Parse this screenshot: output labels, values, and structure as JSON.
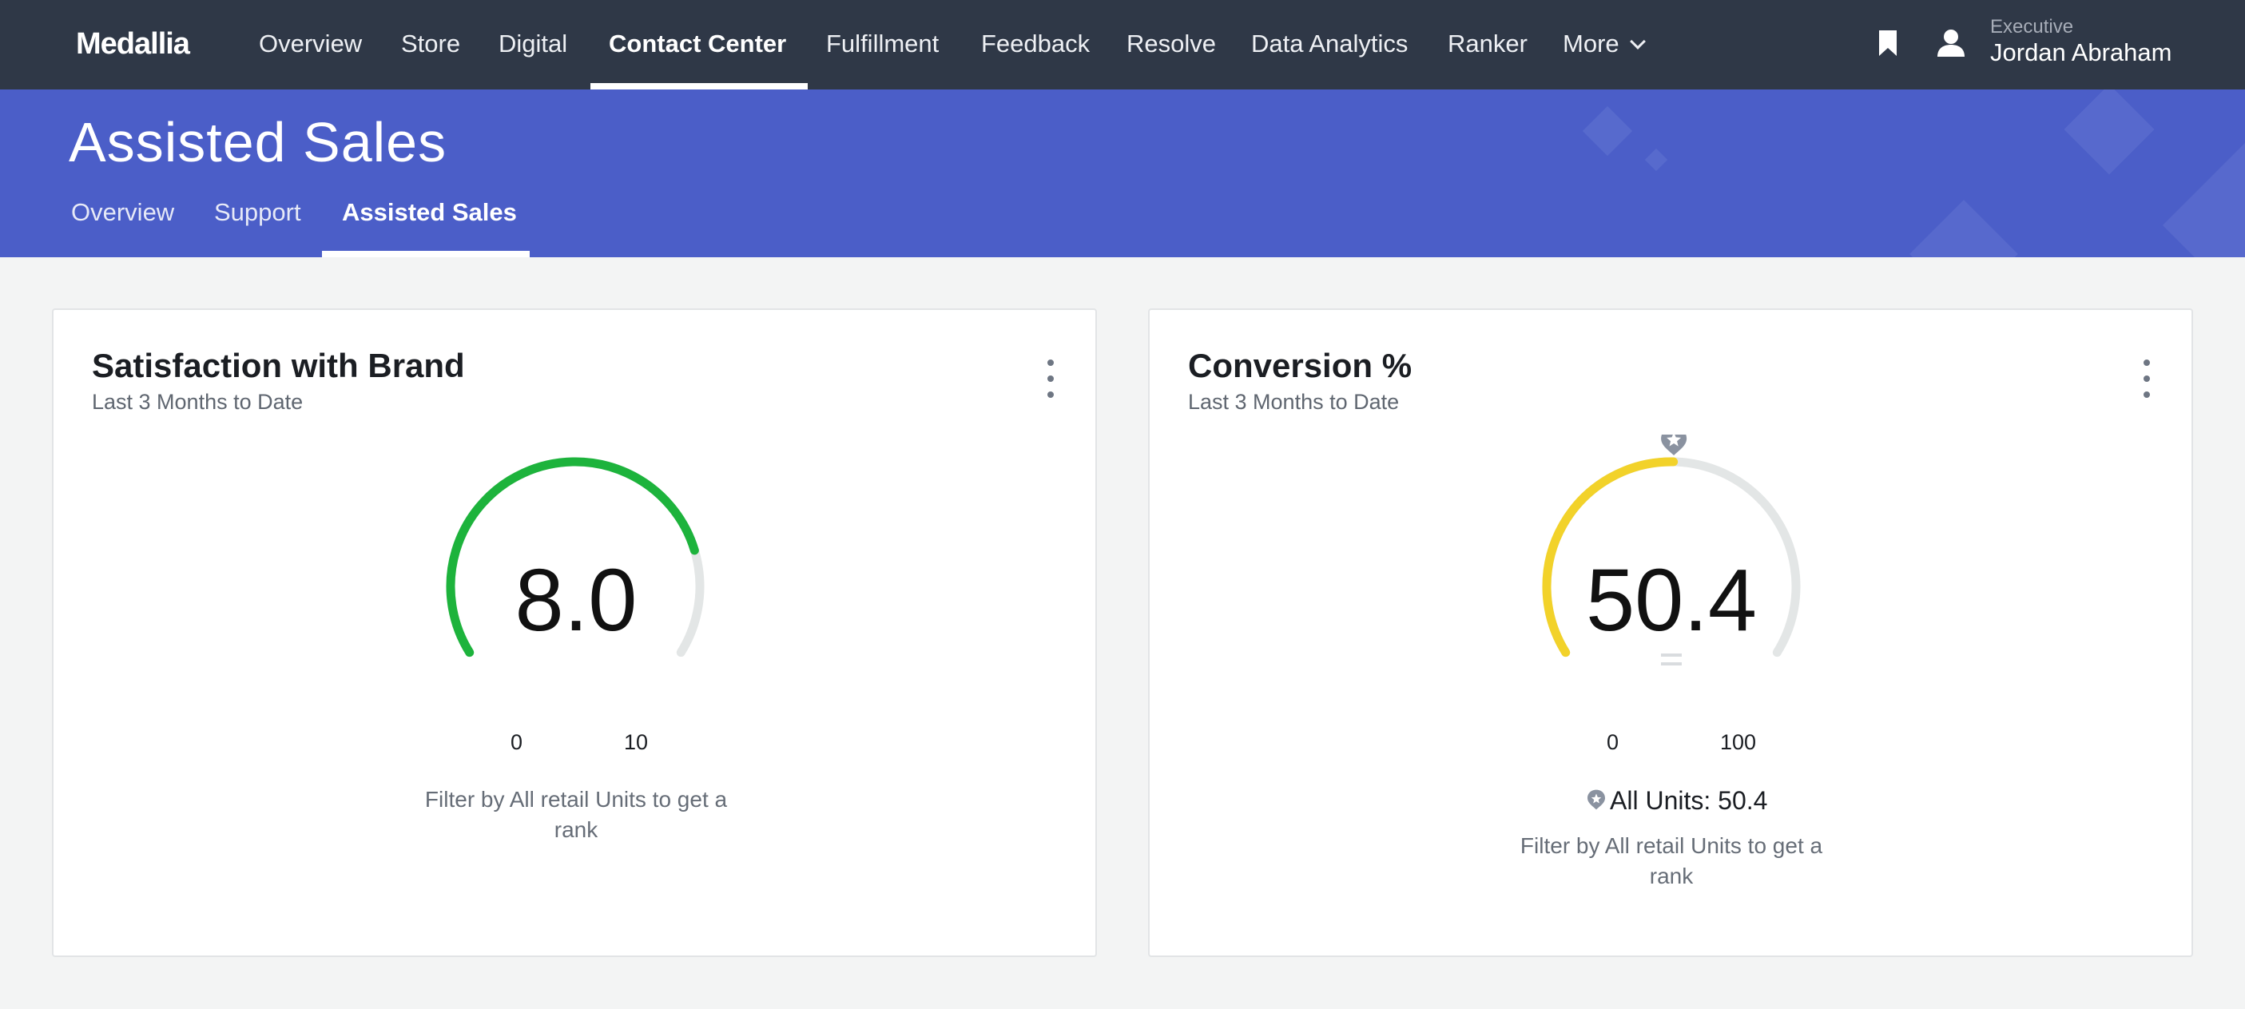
{
  "app": {
    "logo": "Medallia"
  },
  "topnav": {
    "items": [
      "Overview",
      "Store",
      "Digital",
      "Contact Center",
      "Fulfillment",
      "Feedback",
      "Resolve",
      "Data Analytics",
      "Ranker",
      "More"
    ],
    "active": "Contact Center",
    "icons": [
      "bookmark-icon",
      "user-icon",
      "chevron-down-icon"
    ]
  },
  "user": {
    "role": "Executive",
    "name": "Jordan Abraham"
  },
  "page": {
    "title": "Assisted Sales"
  },
  "subtabs": {
    "items": [
      "Overview",
      "Support",
      "Assisted Sales"
    ],
    "active": "Assisted Sales"
  },
  "cards": [
    {
      "title": "Satisfaction with Brand",
      "subtitle": "Last 3 Months to Date",
      "value": "8.0",
      "min": "0",
      "max": "10",
      "fraction": 0.8,
      "color": "#1db33c",
      "filter_text": "Filter by All retail Units to get a rank"
    },
    {
      "title": "Conversion %",
      "subtitle": "Last 3 Months to Date",
      "value": "50.4",
      "min": "0",
      "max": "100",
      "fraction": 0.504,
      "color": "#f2d22a",
      "benchmark_label": "All Units: 50.4",
      "benchmark_fraction": 0.504,
      "filter_text": "Filter by All retail Units to get a rank"
    }
  ],
  "colors": {
    "nav_bg": "#2f3847",
    "banner_bg": "#4b5ec8",
    "gauge_track": "#e3e6e6",
    "benchmark": "#8a92a0"
  }
}
